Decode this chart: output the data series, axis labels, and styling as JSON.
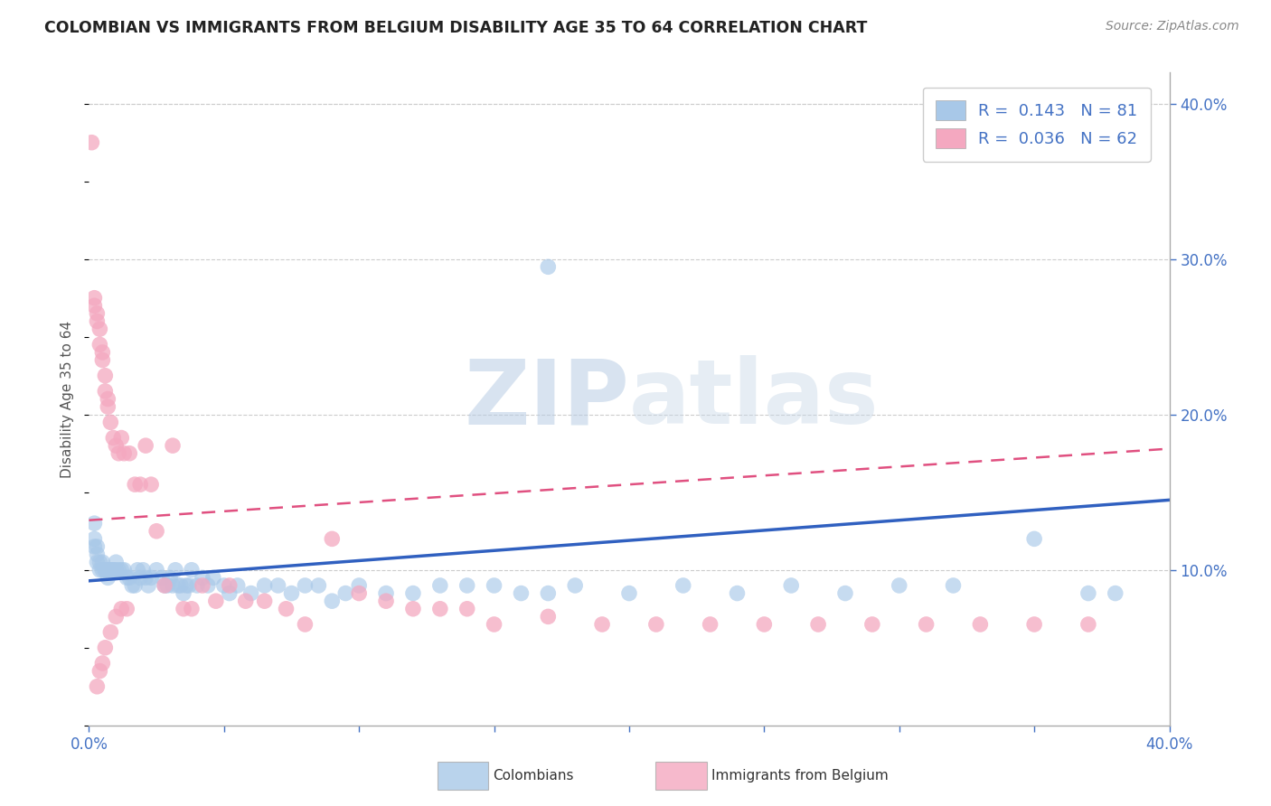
{
  "title": "COLOMBIAN VS IMMIGRANTS FROM BELGIUM DISABILITY AGE 35 TO 64 CORRELATION CHART",
  "source": "Source: ZipAtlas.com",
  "ylabel": "Disability Age 35 to 64",
  "xlim": [
    0.0,
    0.4
  ],
  "ylim": [
    0.0,
    0.42
  ],
  "xticks": [
    0.0,
    0.05,
    0.1,
    0.15,
    0.2,
    0.25,
    0.3,
    0.35,
    0.4
  ],
  "yticks_right": [
    0.1,
    0.2,
    0.3,
    0.4
  ],
  "ytick_labels_right": [
    "10.0%",
    "20.0%",
    "30.0%",
    "40.0%"
  ],
  "r_colombians": 0.143,
  "n_colombians": 81,
  "r_belgium": 0.036,
  "n_belgium": 62,
  "colombians_color": "#a8c8e8",
  "belgium_color": "#f4a8c0",
  "trend_colombians_color": "#3060c0",
  "trend_belgium_color": "#e05080",
  "watermark_zip": "ZIP",
  "watermark_atlas": "atlas",
  "colombians_x": [
    0.002,
    0.002,
    0.002,
    0.003,
    0.003,
    0.003,
    0.004,
    0.004,
    0.005,
    0.005,
    0.006,
    0.006,
    0.007,
    0.007,
    0.008,
    0.008,
    0.009,
    0.009,
    0.01,
    0.01,
    0.011,
    0.012,
    0.013,
    0.014,
    0.015,
    0.016,
    0.017,
    0.018,
    0.019,
    0.02,
    0.021,
    0.022,
    0.023,
    0.025,
    0.027,
    0.028,
    0.029,
    0.03,
    0.031,
    0.032,
    0.033,
    0.034,
    0.035,
    0.036,
    0.037,
    0.038,
    0.04,
    0.042,
    0.044,
    0.046,
    0.05,
    0.052,
    0.055,
    0.06,
    0.065,
    0.07,
    0.075,
    0.08,
    0.085,
    0.09,
    0.095,
    0.1,
    0.11,
    0.12,
    0.13,
    0.14,
    0.15,
    0.16,
    0.17,
    0.18,
    0.2,
    0.22,
    0.24,
    0.26,
    0.28,
    0.3,
    0.32,
    0.35,
    0.37,
    0.38,
    0.17
  ],
  "colombians_y": [
    0.13,
    0.12,
    0.115,
    0.115,
    0.11,
    0.105,
    0.105,
    0.1,
    0.1,
    0.105,
    0.1,
    0.1,
    0.1,
    0.095,
    0.1,
    0.1,
    0.1,
    0.1,
    0.105,
    0.1,
    0.1,
    0.1,
    0.1,
    0.095,
    0.095,
    0.09,
    0.09,
    0.1,
    0.095,
    0.1,
    0.095,
    0.09,
    0.095,
    0.1,
    0.095,
    0.09,
    0.09,
    0.095,
    0.09,
    0.1,
    0.09,
    0.09,
    0.085,
    0.09,
    0.09,
    0.1,
    0.09,
    0.095,
    0.09,
    0.095,
    0.09,
    0.085,
    0.09,
    0.085,
    0.09,
    0.09,
    0.085,
    0.09,
    0.09,
    0.08,
    0.085,
    0.09,
    0.085,
    0.085,
    0.09,
    0.09,
    0.09,
    0.085,
    0.085,
    0.09,
    0.085,
    0.09,
    0.085,
    0.09,
    0.085,
    0.09,
    0.09,
    0.12,
    0.085,
    0.085,
    0.295
  ],
  "belgium_x": [
    0.001,
    0.002,
    0.002,
    0.003,
    0.003,
    0.004,
    0.004,
    0.005,
    0.005,
    0.006,
    0.006,
    0.007,
    0.007,
    0.008,
    0.009,
    0.01,
    0.011,
    0.012,
    0.013,
    0.015,
    0.017,
    0.019,
    0.021,
    0.023,
    0.025,
    0.028,
    0.031,
    0.035,
    0.038,
    0.042,
    0.047,
    0.052,
    0.058,
    0.065,
    0.073,
    0.08,
    0.09,
    0.1,
    0.11,
    0.12,
    0.13,
    0.14,
    0.15,
    0.17,
    0.19,
    0.21,
    0.23,
    0.25,
    0.27,
    0.29,
    0.31,
    0.33,
    0.35,
    0.37,
    0.003,
    0.004,
    0.005,
    0.006,
    0.008,
    0.01,
    0.012,
    0.014
  ],
  "belgium_y": [
    0.375,
    0.275,
    0.27,
    0.265,
    0.26,
    0.255,
    0.245,
    0.24,
    0.235,
    0.225,
    0.215,
    0.21,
    0.205,
    0.195,
    0.185,
    0.18,
    0.175,
    0.185,
    0.175,
    0.175,
    0.155,
    0.155,
    0.18,
    0.155,
    0.125,
    0.09,
    0.18,
    0.075,
    0.075,
    0.09,
    0.08,
    0.09,
    0.08,
    0.08,
    0.075,
    0.065,
    0.12,
    0.085,
    0.08,
    0.075,
    0.075,
    0.075,
    0.065,
    0.07,
    0.065,
    0.065,
    0.065,
    0.065,
    0.065,
    0.065,
    0.065,
    0.065,
    0.065,
    0.065,
    0.025,
    0.035,
    0.04,
    0.05,
    0.06,
    0.07,
    0.075,
    0.075
  ]
}
